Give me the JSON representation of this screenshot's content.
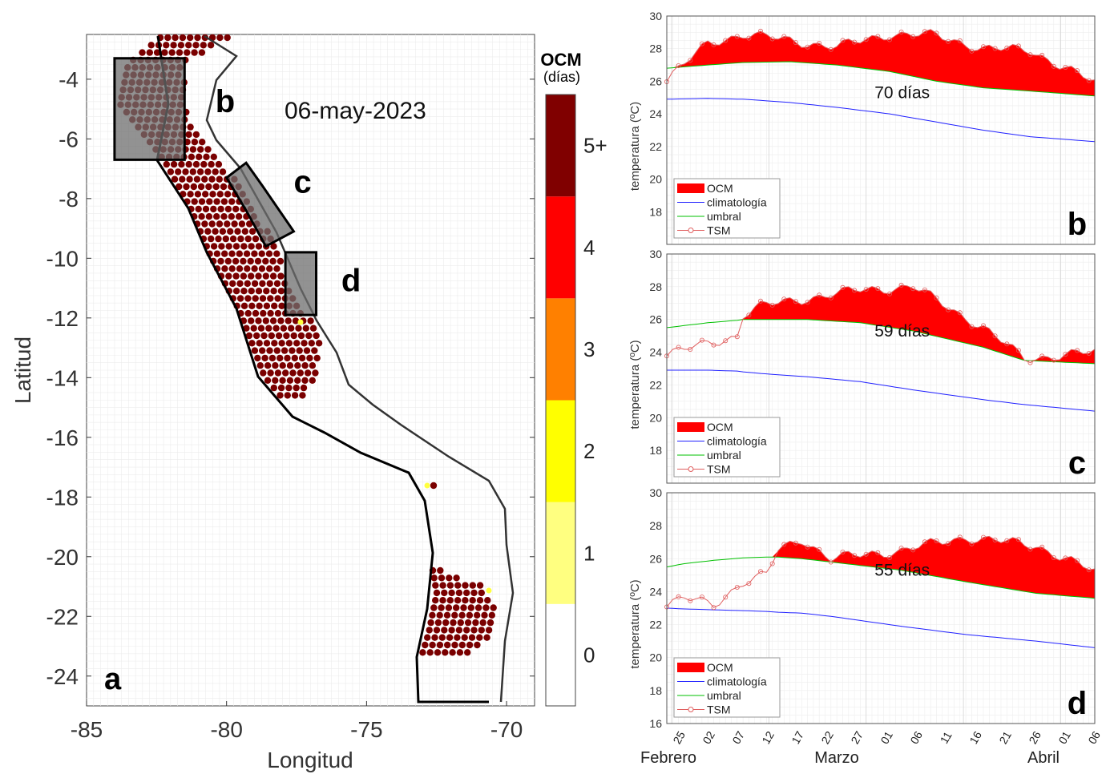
{
  "map_panel": {
    "panel_letter": "a",
    "date": "06-may-2023",
    "xlabel": "Longitud",
    "ylabel": "Latitud",
    "xticks": [
      -85,
      -80,
      -75,
      -70
    ],
    "yticks": [
      -4,
      -6,
      -8,
      -10,
      -12,
      -14,
      -16,
      -18,
      -20,
      -22,
      -24
    ],
    "xlim": [
      -85,
      -69
    ],
    "ylim": [
      -25,
      -2.5
    ],
    "box_labels": [
      {
        "text": "b",
        "lon": -80.4,
        "lat": -5.1
      },
      {
        "text": "c",
        "lon": -77.6,
        "lat": -7.8
      },
      {
        "text": "d",
        "lon": -75.9,
        "lat": -11.1
      }
    ],
    "boxes": [
      {
        "name": "b",
        "corners": [
          [
            -84.0,
            -3.3
          ],
          [
            -81.5,
            -3.3
          ],
          [
            -81.5,
            -6.7
          ],
          [
            -84.0,
            -6.7
          ]
        ]
      },
      {
        "name": "c",
        "corners": [
          [
            -79.3,
            -6.8
          ],
          [
            -78.7,
            -7.6
          ],
          [
            -77.6,
            -9.1
          ],
          [
            -78.6,
            -9.6
          ],
          [
            -79.3,
            -8.4
          ],
          [
            -80.0,
            -7.3
          ]
        ]
      },
      {
        "name": "d",
        "corners": [
          [
            -77.9,
            -9.8
          ],
          [
            -76.8,
            -9.8
          ],
          [
            -76.8,
            -11.9
          ],
          [
            -77.9,
            -11.9
          ]
        ]
      }
    ]
  },
  "colorbar": {
    "title": "OCM",
    "subtitle": "(días)",
    "tick_labels": [
      "0",
      "1",
      "2",
      "3",
      "4",
      "5+"
    ],
    "colors": [
      "#ffffff",
      "#ffff80",
      "#ffff00",
      "#ff8000",
      "#ff0000",
      "#800000"
    ]
  },
  "chart_data": [
    {
      "type": "area",
      "panel": "b",
      "annotation": "70 días",
      "ylabel": "temperatura (ºC)",
      "ylim": [
        16,
        30
      ],
      "yticks": [
        18,
        20,
        22,
        24,
        26,
        28,
        30
      ],
      "legend": {
        "placement": "bottom-left",
        "entries": [
          "OCM",
          "climatología",
          "umbral",
          "TSM"
        ]
      },
      "x_start": "2023-02-22",
      "x_end": "2023-05-06",
      "x": [
        "2023-02-22",
        "2023-03-01",
        "2023-03-07",
        "2023-03-15",
        "2023-03-23",
        "2023-04-01",
        "2023-04-09",
        "2023-04-17",
        "2023-04-25",
        "2023-05-06"
      ],
      "series": [
        {
          "name": "TSM",
          "values": [
            26.1,
            28.3,
            28.9,
            28.5,
            28.1,
            28.9,
            28.8,
            28.0,
            27.9,
            25.9
          ]
        },
        {
          "name": "umbral",
          "values": [
            26.8,
            27.0,
            27.15,
            27.2,
            27.0,
            26.6,
            26.0,
            25.6,
            25.4,
            25.1
          ]
        },
        {
          "name": "climatología",
          "values": [
            24.9,
            24.95,
            24.9,
            24.7,
            24.4,
            24.0,
            23.5,
            23.0,
            22.6,
            22.3
          ]
        }
      ]
    },
    {
      "type": "area",
      "panel": "c",
      "annotation": "59 días",
      "ylabel": "temperatura (ºC)",
      "ylim": [
        16,
        30
      ],
      "yticks": [
        18,
        20,
        22,
        24,
        26,
        28,
        30
      ],
      "legend": {
        "placement": "bottom-left",
        "entries": [
          "OCM",
          "climatología",
          "umbral",
          "TSM"
        ]
      },
      "x_start": "2023-02-22",
      "x_end": "2023-05-06",
      "x": [
        "2023-02-22",
        "2023-03-01",
        "2023-03-06",
        "2023-03-07",
        "2023-03-10",
        "2023-03-18",
        "2023-03-27",
        "2023-04-05",
        "2023-04-17",
        "2023-04-24",
        "2023-05-06"
      ],
      "series": [
        {
          "name": "TSM",
          "values": [
            23.9,
            24.5,
            25.0,
            26.3,
            26.8,
            27.3,
            27.8,
            28.0,
            25.5,
            23.6,
            24.0
          ]
        },
        {
          "name": "umbral",
          "values": [
            25.5,
            25.8,
            25.95,
            26.0,
            26.0,
            26.0,
            25.8,
            25.3,
            24.3,
            23.5,
            23.3
          ]
        },
        {
          "name": "climatología",
          "values": [
            22.9,
            22.9,
            22.85,
            22.8,
            22.7,
            22.5,
            22.2,
            21.7,
            21.1,
            20.8,
            20.4
          ]
        }
      ]
    },
    {
      "type": "area",
      "panel": "d",
      "annotation": "55 días",
      "ylabel": "temperatura (ºC)",
      "ylim": [
        16,
        30
      ],
      "yticks": [
        16,
        18,
        20,
        22,
        24,
        26,
        28,
        30
      ],
      "xlabel_groups": [
        "Febrero",
        "Marzo",
        "Abril"
      ],
      "xtick_labels": [
        "25",
        "02",
        "07",
        "12",
        "17",
        "22",
        "27",
        "01",
        "06",
        "11",
        "16",
        "21",
        "26",
        "01",
        "06"
      ],
      "legend": {
        "placement": "bottom-left",
        "entries": [
          "OCM",
          "climatología",
          "umbral",
          "TSM"
        ]
      },
      "x_start": "2023-02-22",
      "x_end": "2023-05-06",
      "x": [
        "2023-02-22",
        "2023-02-25",
        "2023-03-02",
        "2023-03-07",
        "2023-03-11",
        "2023-03-13",
        "2023-03-17",
        "2023-03-22",
        "2023-04-03",
        "2023-04-14",
        "2023-04-26",
        "2023-05-06"
      ],
      "series": [
        {
          "name": "TSM",
          "values": [
            23.2,
            23.6,
            23.2,
            24.6,
            25.0,
            26.5,
            27.2,
            26.0,
            26.5,
            27.3,
            26.8,
            25.2
          ]
        },
        {
          "name": "umbral",
          "values": [
            25.5,
            25.7,
            25.9,
            26.05,
            26.1,
            26.1,
            26.0,
            25.8,
            25.3,
            24.6,
            23.9,
            23.6
          ]
        },
        {
          "name": "climatología",
          "values": [
            23.0,
            22.95,
            22.9,
            22.85,
            22.8,
            22.75,
            22.7,
            22.5,
            21.9,
            21.4,
            21.0,
            20.6
          ]
        }
      ]
    }
  ]
}
